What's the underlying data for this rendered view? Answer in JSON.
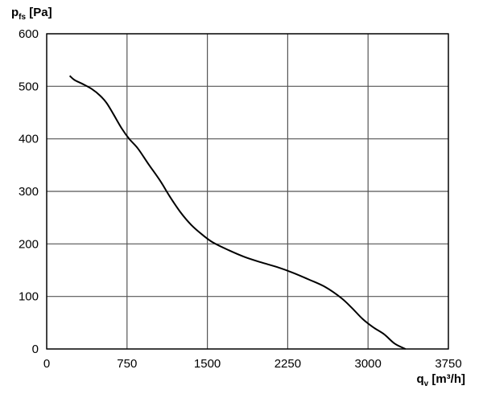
{
  "chart_data": {
    "type": "line",
    "title": "",
    "ylabel": {
      "main": "p",
      "sub": "fs",
      "unit": " [Pa]"
    },
    "xlabel": {
      "main": "q",
      "sub": "v",
      "unit": " [m³/h]"
    },
    "xlim": [
      0,
      3750
    ],
    "ylim": [
      0,
      600
    ],
    "grid": true,
    "x_ticks": [
      0,
      750,
      1500,
      2250,
      3000,
      3750
    ],
    "y_ticks": [
      0,
      100,
      200,
      300,
      400,
      500,
      600
    ],
    "series": [
      {
        "color": "#000000",
        "points": [
          [
            215,
            520
          ],
          [
            260,
            512
          ],
          [
            330,
            505
          ],
          [
            420,
            495
          ],
          [
            500,
            482
          ],
          [
            560,
            468
          ],
          [
            620,
            448
          ],
          [
            700,
            420
          ],
          [
            770,
            400
          ],
          [
            850,
            382
          ],
          [
            950,
            352
          ],
          [
            1060,
            320
          ],
          [
            1150,
            290
          ],
          [
            1250,
            260
          ],
          [
            1350,
            236
          ],
          [
            1450,
            218
          ],
          [
            1550,
            203
          ],
          [
            1700,
            188
          ],
          [
            1850,
            175
          ],
          [
            2000,
            165
          ],
          [
            2150,
            156
          ],
          [
            2300,
            145
          ],
          [
            2450,
            132
          ],
          [
            2600,
            118
          ],
          [
            2750,
            97
          ],
          [
            2850,
            78
          ],
          [
            2950,
            57
          ],
          [
            3050,
            41
          ],
          [
            3150,
            28
          ],
          [
            3250,
            10
          ],
          [
            3350,
            0
          ]
        ]
      }
    ]
  }
}
